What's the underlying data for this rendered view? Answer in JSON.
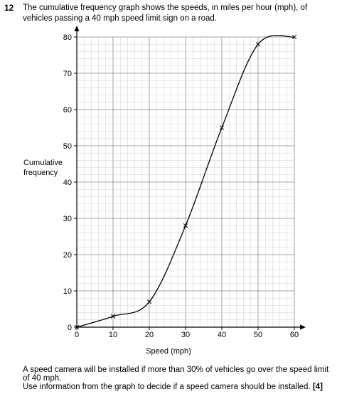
{
  "question": {
    "number": "12",
    "text": "The cumulative frequency graph shows the speeds, in miles per hour (mph), of vehicles passing a 40 mph speed limit sign on a road."
  },
  "footer": {
    "line1": "A speed camera will be installed if more than 30% of vehicles go over the speed limit of 40 mph.",
    "line2": "Use information from the graph to decide if a speed camera should be installed.",
    "marks": "[4]"
  },
  "chart_data": {
    "type": "line",
    "title": "",
    "xlabel": "Speed (mph)",
    "ylabel_lines": [
      "Cumulative",
      "frequency"
    ],
    "xlim": [
      0,
      60
    ],
    "ylim": [
      0,
      80
    ],
    "x_ticks": [
      0,
      10,
      20,
      30,
      40,
      50,
      60
    ],
    "y_ticks": [
      0,
      10,
      20,
      30,
      40,
      50,
      60,
      70,
      80
    ],
    "grid": true,
    "series": [
      {
        "points": [
          {
            "x": 0,
            "y": 0
          },
          {
            "x": 10,
            "y": 3
          },
          {
            "x": 20,
            "y": 7
          },
          {
            "x": 30,
            "y": 28
          },
          {
            "x": 40,
            "y": 55
          },
          {
            "x": 50,
            "y": 78
          },
          {
            "x": 60,
            "y": 80
          }
        ]
      }
    ]
  }
}
